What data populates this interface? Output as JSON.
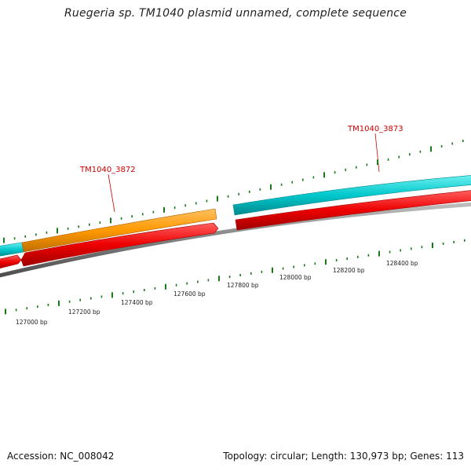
{
  "title": "Ruegeria sp. TM1040 plasmid unnamed, complete sequence",
  "footer": {
    "accession": "Accession: NC_008042",
    "topology": "Topology: circular; Length: 130,973 bp; Genes: 113"
  },
  "genes": [
    {
      "id": "TM1040_3872",
      "label": "TM1040_3872",
      "color": "#ff9900"
    },
    {
      "id": "TM1040_3873",
      "label": "TM1040_3873",
      "color": "#00cccc"
    }
  ],
  "ruler_labels": [
    "127000 bp",
    "127200 bp",
    "127400 bp",
    "127600 bp",
    "127800 bp",
    "128000 bp",
    "128200 bp",
    "128400 bp"
  ],
  "colors": {
    "cyan": "#00c8cc",
    "orange": "#ff9900",
    "red": "#ee0000",
    "backbone": "#808080",
    "tick": "#1a7a1a",
    "label_red": "#cc0000"
  }
}
